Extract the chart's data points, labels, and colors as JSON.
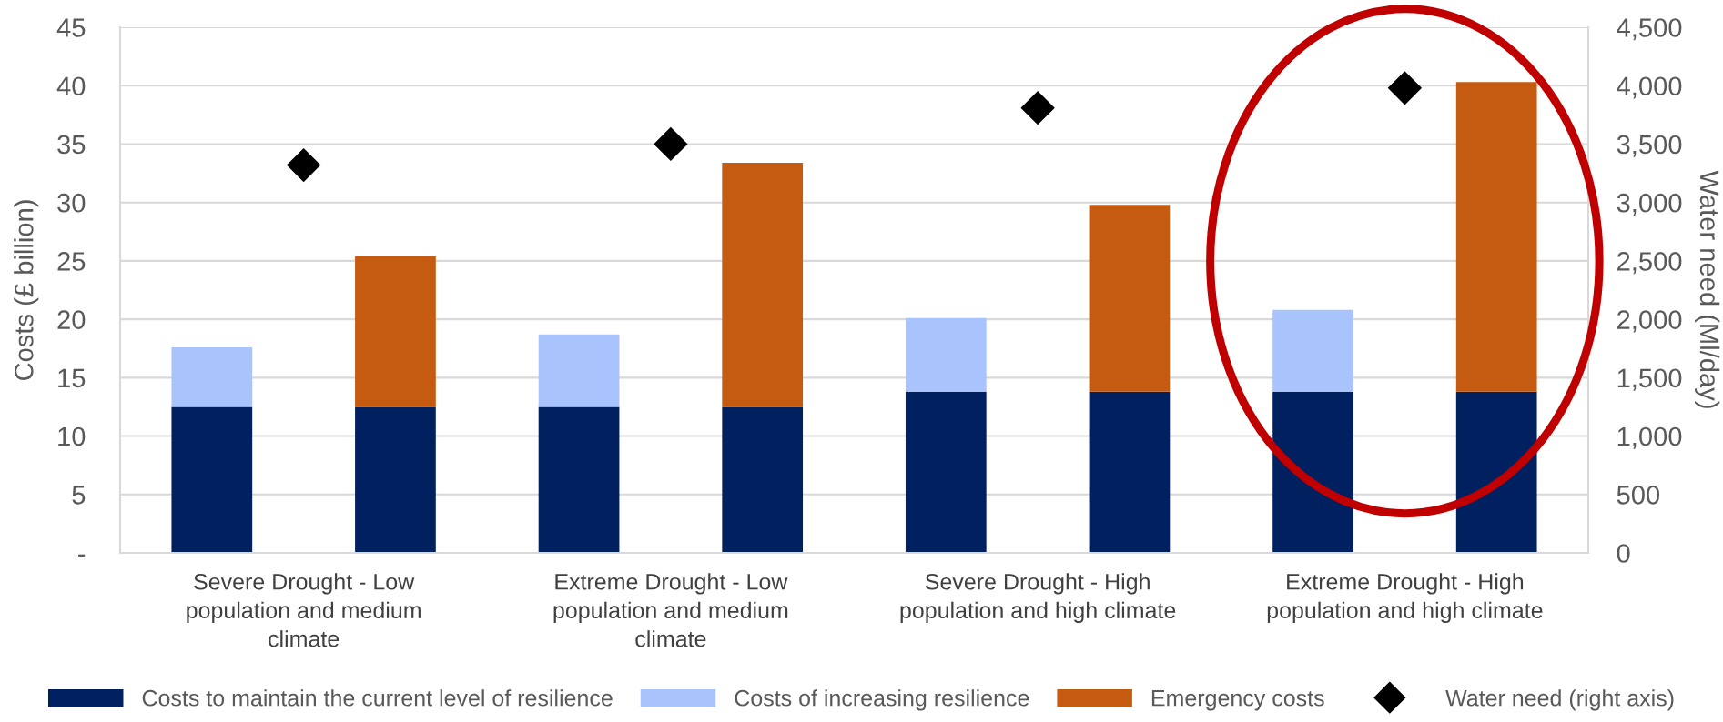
{
  "chart_data": {
    "type": "bar",
    "stacked": true,
    "categories": [
      null,
      "Severe Drought - Low\npopulation and medium\nclimate",
      null,
      null,
      "Extreme Drought - Low\npopulation and medium\nclimate",
      null,
      null,
      "Severe Drought - High\npopulation and high climate",
      null,
      null,
      "Extreme Drought - High\npopulation and high climate",
      null
    ],
    "ylabel": "Costs (£ billion)",
    "y2label": "Water need (Ml/day)",
    "ylim": [
      0,
      45
    ],
    "yticks": [
      {
        "value": 0,
        "label": "-"
      },
      5,
      10,
      15,
      20,
      25,
      30,
      35,
      40,
      45
    ],
    "y2lim": [
      0,
      4500
    ],
    "y2ticks": [
      0,
      500,
      {
        "value": 1000,
        "label": "1,000"
      },
      {
        "value": 1500,
        "label": "1,500"
      },
      {
        "value": 2000,
        "label": "2,000"
      },
      {
        "value": 2500,
        "label": "2,500"
      },
      {
        "value": 3000,
        "label": "3,000"
      },
      {
        "value": 3500,
        "label": "3,500"
      },
      {
        "value": 4000,
        "label": "4,000"
      },
      {
        "value": 4500,
        "label": "4,500"
      }
    ],
    "grid": "y",
    "legend": "bottom",
    "series": [
      {
        "name": "Costs to maintain the current level of resilience",
        "color": "#002060",
        "values": [
          12.5,
          null,
          12.5,
          12.5,
          null,
          12.5,
          13.8,
          null,
          13.8,
          13.8,
          null,
          13.8
        ]
      },
      {
        "name": "Costs of increasing resilience",
        "color": "#a9c4fc",
        "values": [
          5.1,
          null,
          null,
          6.2,
          null,
          null,
          6.3,
          null,
          null,
          7.0,
          null,
          null
        ]
      },
      {
        "name": "Emergency costs",
        "color": "#c55a11",
        "values": [
          null,
          null,
          12.9,
          null,
          null,
          20.9,
          null,
          null,
          16.0,
          null,
          null,
          26.5
        ]
      },
      {
        "name": "Water need (right axis)",
        "type": "scatter",
        "axis": "y2",
        "marker": "diamond",
        "color": "#000000",
        "values": [
          null,
          3320,
          null,
          null,
          3500,
          null,
          null,
          3810,
          null,
          null,
          3980,
          null
        ]
      }
    ]
  }
}
